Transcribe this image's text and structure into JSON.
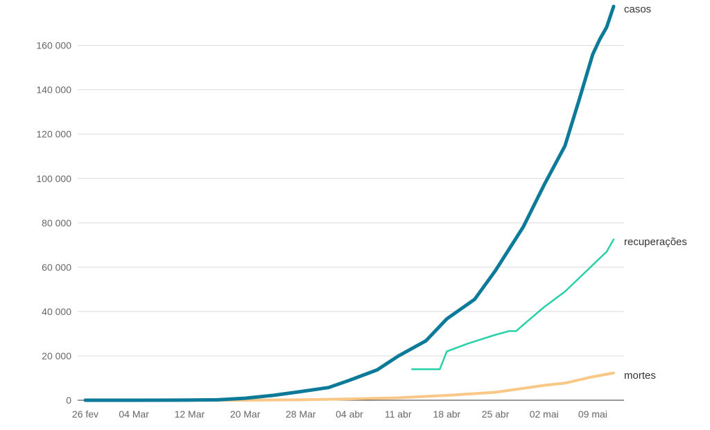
{
  "chart_data": {
    "type": "line",
    "title": "",
    "xlabel": "",
    "ylabel": "",
    "ylim": [
      0,
      178000
    ],
    "y_ticks": [
      0,
      20000,
      40000,
      60000,
      80000,
      100000,
      120000,
      140000,
      160000
    ],
    "y_tick_labels": [
      "0",
      "20 000",
      "40 000",
      "60 000",
      "80 000",
      "100 000",
      "120 000",
      "140 000",
      "160 000"
    ],
    "x_ticks": [
      "2020-02-26",
      "2020-03-04",
      "2020-03-12",
      "2020-03-20",
      "2020-03-28",
      "2020-04-04",
      "2020-04-11",
      "2020-04-18",
      "2020-04-25",
      "2020-05-02",
      "2020-05-09"
    ],
    "x_tick_labels": [
      "26 fev",
      "04 Mar",
      "12 Mar",
      "20 Mar",
      "28 Mar",
      "04 abr",
      "11 abr",
      "18 abr",
      "25 abr",
      "02 mai",
      "09 mai"
    ],
    "grid": true,
    "legend": "inline-end-labels",
    "series": [
      {
        "name": "casos",
        "color": "#0e7a99",
        "points": [
          [
            "2020-02-26",
            0
          ],
          [
            "2020-03-04",
            0
          ],
          [
            "2020-03-12",
            50
          ],
          [
            "2020-03-16",
            200
          ],
          [
            "2020-03-20",
            900
          ],
          [
            "2020-03-24",
            2200
          ],
          [
            "2020-03-28",
            3900
          ],
          [
            "2020-04-01",
            5700
          ],
          [
            "2020-04-04",
            9000
          ],
          [
            "2020-04-08",
            13700
          ],
          [
            "2020-04-11",
            19900
          ],
          [
            "2020-04-15",
            26800
          ],
          [
            "2020-04-18",
            36700
          ],
          [
            "2020-04-22",
            45500
          ],
          [
            "2020-04-25",
            58500
          ],
          [
            "2020-04-29",
            78200
          ],
          [
            "2020-05-02",
            97100
          ],
          [
            "2020-05-05",
            114700
          ],
          [
            "2020-05-07",
            135100
          ],
          [
            "2020-05-09",
            156000
          ],
          [
            "2020-05-10",
            162700
          ],
          [
            "2020-05-11",
            168300
          ],
          [
            "2020-05-12",
            177600
          ]
        ]
      },
      {
        "name": "recuperações",
        "color": "#27d1a8",
        "points": [
          [
            "2020-04-13",
            14000
          ],
          [
            "2020-04-17",
            14000
          ],
          [
            "2020-04-18",
            22000
          ],
          [
            "2020-04-21",
            25500
          ],
          [
            "2020-04-25",
            29500
          ],
          [
            "2020-04-27",
            31200
          ],
          [
            "2020-04-28",
            31200
          ],
          [
            "2020-04-29",
            34000
          ],
          [
            "2020-05-02",
            42000
          ],
          [
            "2020-05-05",
            49000
          ],
          [
            "2020-05-07",
            55000
          ],
          [
            "2020-05-09",
            61000
          ],
          [
            "2020-05-11",
            67000
          ],
          [
            "2020-05-12",
            72500
          ]
        ]
      },
      {
        "name": "mortes",
        "color": "#f9c786",
        "points": [
          [
            "2020-02-26",
            0
          ],
          [
            "2020-03-20",
            0
          ],
          [
            "2020-03-28",
            200
          ],
          [
            "2020-04-04",
            600
          ],
          [
            "2020-04-11",
            1100
          ],
          [
            "2020-04-18",
            2200
          ],
          [
            "2020-04-25",
            3600
          ],
          [
            "2020-05-02",
            6700
          ],
          [
            "2020-05-05",
            7700
          ],
          [
            "2020-05-09",
            10600
          ],
          [
            "2020-05-12",
            12300
          ]
        ]
      }
    ]
  }
}
